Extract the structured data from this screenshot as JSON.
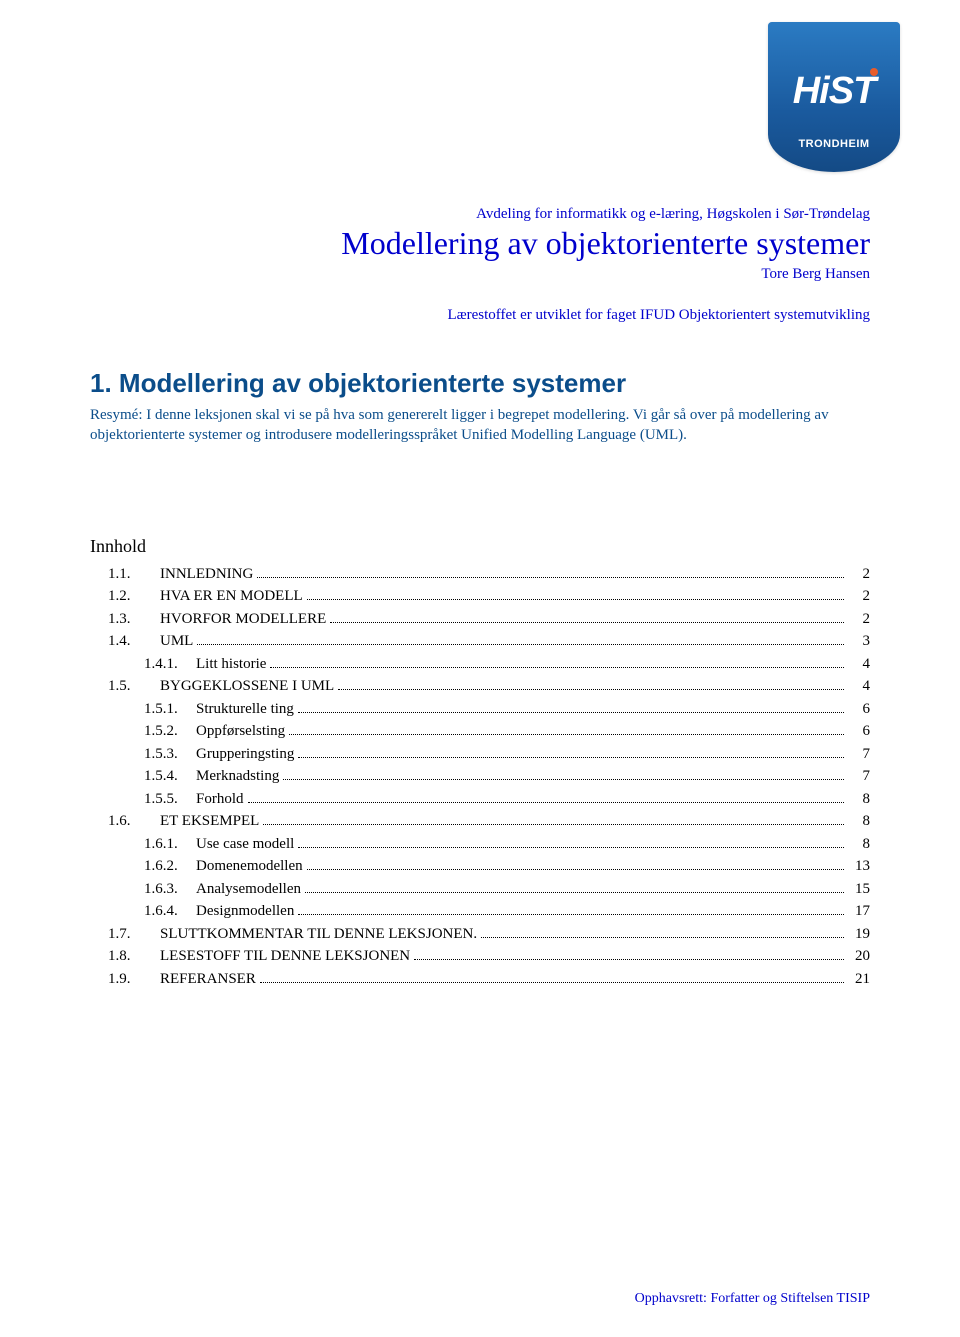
{
  "logo": {
    "text": "HiST",
    "subtext": "TRONDHEIM",
    "bg_top": "#2b7bc3",
    "bg_bottom": "#144a85",
    "dot_color": "#e85c2a"
  },
  "colors": {
    "link_blue": "#0000cc",
    "heading_blue": "#0b4d8a",
    "text": "#000000",
    "background": "#ffffff"
  },
  "fonts": {
    "body_family": "Times New Roman",
    "heading_family": "Arial",
    "body_size_pt": 11,
    "title_size_pt": 24,
    "section_heading_size_pt": 20,
    "toc_heading_size_pt": 14
  },
  "header": {
    "department": "Avdeling for informatikk og e-læring, Høgskolen i Sør-Trøndelag",
    "title": "Modellering av objektorienterte systemer",
    "author": "Tore Berg Hansen",
    "course_note": "Lærestoffet er utviklet for faget IFUD Objektorientert systemutvikling"
  },
  "section": {
    "heading": "1. Modellering av objektorienterte systemer",
    "resume": "Resymé: I denne leksjonen skal vi se på hva som genererelt ligger i begrepet modellering. Vi går så over på modellering av objektorienterte systemer og introdusere modelleringsspråket Unified Modelling Language (UML)."
  },
  "toc": {
    "heading": "Innhold",
    "entries": [
      {
        "level": 0,
        "num": "1.1.",
        "label": "INNLEDNING",
        "page": "2",
        "smallcaps": true
      },
      {
        "level": 0,
        "num": "1.2.",
        "label": "HVA ER EN MODELL",
        "page": "2",
        "smallcaps": true
      },
      {
        "level": 0,
        "num": "1.3.",
        "label": "HVORFOR MODELLERE",
        "page": "2",
        "smallcaps": true
      },
      {
        "level": 0,
        "num": "1.4.",
        "label": "UML",
        "page": "3",
        "smallcaps": true
      },
      {
        "level": 1,
        "num": "1.4.1.",
        "label": "Litt historie",
        "page": "4",
        "smallcaps": false
      },
      {
        "level": 0,
        "num": "1.5.",
        "label": "BYGGEKLOSSENE I UML",
        "page": "4",
        "smallcaps": true
      },
      {
        "level": 1,
        "num": "1.5.1.",
        "label": "Strukturelle ting",
        "page": "6",
        "smallcaps": false
      },
      {
        "level": 1,
        "num": "1.5.2.",
        "label": "Oppførselsting",
        "page": "6",
        "smallcaps": false
      },
      {
        "level": 1,
        "num": "1.5.3.",
        "label": "Grupperingsting",
        "page": "7",
        "smallcaps": false
      },
      {
        "level": 1,
        "num": "1.5.4.",
        "label": "Merknadsting",
        "page": "7",
        "smallcaps": false
      },
      {
        "level": 1,
        "num": "1.5.5.",
        "label": "Forhold",
        "page": "8",
        "smallcaps": false
      },
      {
        "level": 0,
        "num": "1.6.",
        "label": "ET EKSEMPEL",
        "page": "8",
        "smallcaps": true
      },
      {
        "level": 1,
        "num": "1.6.1.",
        "label": "Use case modell",
        "page": "8",
        "smallcaps": false
      },
      {
        "level": 1,
        "num": "1.6.2.",
        "label": "Domenemodellen",
        "page": "13",
        "smallcaps": false
      },
      {
        "level": 1,
        "num": "1.6.3.",
        "label": "Analysemodellen",
        "page": "15",
        "smallcaps": false
      },
      {
        "level": 1,
        "num": "1.6.4.",
        "label": "Designmodellen",
        "page": "17",
        "smallcaps": false
      },
      {
        "level": 0,
        "num": "1.7.",
        "label": "SLUTTKOMMENTAR TIL DENNE LEKSJONEN.",
        "page": "19",
        "smallcaps": true
      },
      {
        "level": 0,
        "num": "1.8.",
        "label": "LESESTOFF TIL DENNE LEKSJONEN",
        "page": "20",
        "smallcaps": true
      },
      {
        "level": 0,
        "num": "1.9.",
        "label": "REFERANSER",
        "page": "21",
        "smallcaps": true
      }
    ]
  },
  "footer": {
    "copyright": "Opphavsrett: Forfatter og Stiftelsen TISIP"
  }
}
